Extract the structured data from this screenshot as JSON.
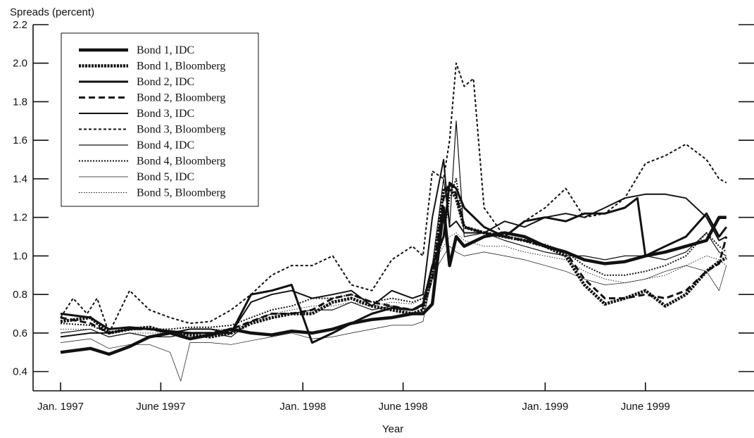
{
  "chart_data": {
    "type": "line",
    "title": "",
    "ylabel": "Spreads (percent)",
    "xlabel": "Year",
    "ylim": [
      0.3,
      2.2
    ],
    "yticks": [
      0.4,
      0.6,
      0.8,
      1.0,
      1.2,
      1.4,
      1.6,
      1.8,
      2.0,
      2.2
    ],
    "ytick_labels": [
      "0.4",
      "0.6",
      "0.8",
      "1.0",
      "1.2",
      "1.4",
      "1.6",
      "1.8",
      "2.0",
      "2.2"
    ],
    "xlim": [
      "1997-01-01",
      "1999-10-15"
    ],
    "xticks": [
      "1997-01-01",
      "1997-06-01",
      "1998-01-01",
      "1998-06-01",
      "1999-01-01",
      "1999-06-01"
    ],
    "xtick_labels": [
      "Jan. 1997",
      "June 1997",
      "Jan. 1998",
      "June 1998",
      "Jan. 1999",
      "June 1999"
    ],
    "grid": false,
    "legend_position": "top-left",
    "series": [
      {
        "name": "Bond 1, IDC",
        "x": [
          "1997-01-01",
          "1997-02-15",
          "1997-03-15",
          "1997-04-15",
          "1997-05-15",
          "1997-06-15",
          "1997-07-15",
          "1997-08-15",
          "1997-09-15",
          "1997-10-15",
          "1997-11-15",
          "1997-12-15",
          "1998-01-15",
          "1998-02-15",
          "1998-03-15",
          "1998-04-15",
          "1998-05-15",
          "1998-06-15",
          "1998-07-01",
          "1998-07-15",
          "1998-08-01",
          "1998-08-10",
          "1998-08-20",
          "1998-09-01",
          "1998-10-01",
          "1998-11-01",
          "1998-12-01",
          "1999-01-01",
          "1999-02-01",
          "1999-03-01",
          "1999-04-01",
          "1999-05-01",
          "1999-06-01",
          "1999-07-01",
          "1999-08-01",
          "1999-09-01",
          "1999-09-20",
          "1999-10-01"
        ],
        "values": [
          0.5,
          0.52,
          0.49,
          0.53,
          0.58,
          0.6,
          0.57,
          0.59,
          0.62,
          0.6,
          0.59,
          0.61,
          0.6,
          0.62,
          0.65,
          0.67,
          0.68,
          0.7,
          0.7,
          0.75,
          1.25,
          0.95,
          1.1,
          1.05,
          1.1,
          1.12,
          1.1,
          1.05,
          1.02,
          0.98,
          0.96,
          0.97,
          1.0,
          1.02,
          1.05,
          1.08,
          1.2,
          1.2
        ]
      },
      {
        "name": "Bond 1, Bloomberg",
        "x": [
          "1997-01-01",
          "1997-02-15",
          "1997-03-15",
          "1997-04-15",
          "1997-05-15",
          "1997-06-15",
          "1997-07-15",
          "1997-08-15",
          "1997-09-15",
          "1997-10-15",
          "1997-11-15",
          "1997-12-15",
          "1998-01-15",
          "1998-02-15",
          "1998-03-15",
          "1998-04-15",
          "1998-05-15",
          "1998-06-15",
          "1998-07-01",
          "1998-07-15",
          "1998-08-01",
          "1998-08-10",
          "1998-08-20",
          "1998-09-01",
          "1998-10-01",
          "1998-11-01",
          "1998-12-01",
          "1999-01-01",
          "1999-02-01",
          "1999-03-01",
          "1999-04-01",
          "1999-05-01",
          "1999-06-01",
          "1999-07-01",
          "1999-08-01",
          "1999-09-01",
          "1999-09-20",
          "1999-10-01"
        ],
        "values": [
          0.66,
          0.68,
          0.6,
          0.62,
          0.63,
          0.6,
          0.59,
          0.58,
          0.6,
          0.65,
          0.68,
          0.7,
          0.7,
          0.76,
          0.78,
          0.74,
          0.72,
          0.7,
          0.72,
          0.9,
          1.35,
          1.35,
          1.3,
          1.15,
          1.12,
          1.1,
          1.08,
          1.05,
          1.0,
          0.85,
          0.75,
          0.78,
          0.82,
          0.74,
          0.8,
          0.92,
          0.97,
          0.99
        ]
      },
      {
        "name": "Bond 2, IDC",
        "x": [
          "1997-01-01",
          "1997-02-15",
          "1997-03-15",
          "1997-04-15",
          "1997-05-15",
          "1997-06-15",
          "1997-07-15",
          "1997-08-15",
          "1997-09-15",
          "1997-10-15",
          "1997-11-15",
          "1997-12-15",
          "1998-01-15",
          "1998-02-15",
          "1998-03-15",
          "1998-04-15",
          "1998-05-15",
          "1998-06-15",
          "1998-07-01",
          "1998-07-15",
          "1998-08-01",
          "1998-08-10",
          "1998-08-20",
          "1998-09-01",
          "1998-10-01",
          "1998-11-01",
          "1998-12-01",
          "1999-01-01",
          "1999-02-01",
          "1999-03-01",
          "1999-04-01",
          "1999-05-01",
          "1999-05-20",
          "1999-06-01",
          "1999-07-01",
          "1999-08-01",
          "1999-09-01",
          "1999-09-20",
          "1999-10-01"
        ],
        "values": [
          0.7,
          0.68,
          0.62,
          0.63,
          0.62,
          0.61,
          0.6,
          0.6,
          0.6,
          0.8,
          0.82,
          0.85,
          0.55,
          0.6,
          0.65,
          0.7,
          0.73,
          0.72,
          0.75,
          0.95,
          1.1,
          1.38,
          1.35,
          1.25,
          1.15,
          1.1,
          1.18,
          1.2,
          1.18,
          1.22,
          1.22,
          1.25,
          1.3,
          1.0,
          1.05,
          1.1,
          1.22,
          1.1,
          1.15
        ]
      },
      {
        "name": "Bond 2, Bloomberg",
        "x": [
          "1997-01-01",
          "1997-02-15",
          "1997-03-15",
          "1997-04-15",
          "1997-05-15",
          "1997-06-15",
          "1997-07-15",
          "1997-08-15",
          "1997-09-15",
          "1997-10-15",
          "1997-11-15",
          "1997-12-15",
          "1998-01-15",
          "1998-02-15",
          "1998-03-15",
          "1998-04-15",
          "1998-05-15",
          "1998-06-15",
          "1998-07-01",
          "1998-07-15",
          "1998-08-01",
          "1998-08-10",
          "1998-08-20",
          "1998-09-01",
          "1998-10-01",
          "1998-11-01",
          "1998-12-01",
          "1999-01-01",
          "1999-02-01",
          "1999-03-01",
          "1999-04-01",
          "1999-05-01",
          "1999-06-01",
          "1999-07-01",
          "1999-08-01",
          "1999-09-01",
          "1999-09-20",
          "1999-10-01"
        ],
        "values": [
          0.68,
          0.65,
          0.6,
          0.62,
          0.62,
          0.6,
          0.6,
          0.6,
          0.62,
          0.66,
          0.7,
          0.7,
          0.72,
          0.78,
          0.8,
          0.76,
          0.74,
          0.72,
          0.74,
          0.88,
          1.3,
          1.38,
          1.32,
          1.15,
          1.12,
          1.1,
          1.08,
          1.05,
          1.02,
          0.88,
          0.78,
          0.78,
          0.8,
          0.78,
          0.82,
          0.92,
          0.96,
          1.1
        ]
      },
      {
        "name": "Bond 3, IDC",
        "x": [
          "1997-01-01",
          "1997-02-15",
          "1997-03-15",
          "1997-04-15",
          "1997-05-15",
          "1997-06-15",
          "1997-07-15",
          "1997-08-15",
          "1997-09-15",
          "1997-10-15",
          "1997-11-15",
          "1997-12-15",
          "1998-01-15",
          "1998-02-15",
          "1998-03-15",
          "1998-04-15",
          "1998-05-15",
          "1998-06-15",
          "1998-07-01",
          "1998-07-15",
          "1998-08-01",
          "1998-08-10",
          "1998-08-20",
          "1998-09-01",
          "1998-10-01",
          "1998-11-01",
          "1998-12-01",
          "1999-01-01",
          "1999-02-01",
          "1999-03-01",
          "1999-04-01",
          "1999-05-01",
          "1999-06-01",
          "1999-07-01",
          "1999-08-01",
          "1999-09-01",
          "1999-09-20",
          "1999-10-01"
        ],
        "values": [
          0.58,
          0.6,
          0.6,
          0.62,
          0.62,
          0.6,
          0.62,
          0.62,
          0.6,
          0.76,
          0.8,
          0.82,
          0.78,
          0.8,
          0.82,
          0.74,
          0.82,
          0.78,
          0.8,
          1.2,
          1.5,
          1.15,
          1.18,
          1.12,
          1.12,
          1.18,
          1.15,
          1.2,
          1.22,
          1.2,
          1.25,
          1.3,
          1.32,
          1.32,
          1.3,
          1.2,
          1.08,
          1.1
        ]
      },
      {
        "name": "Bond 3, Bloomberg",
        "x": [
          "1997-01-01",
          "1997-01-20",
          "1997-02-10",
          "1997-02-25",
          "1997-03-15",
          "1997-04-15",
          "1997-05-15",
          "1997-06-15",
          "1997-07-15",
          "1997-08-15",
          "1997-09-15",
          "1997-10-15",
          "1997-11-15",
          "1997-12-15",
          "1998-01-15",
          "1998-02-15",
          "1998-03-15",
          "1998-04-15",
          "1998-05-15",
          "1998-06-15",
          "1998-07-01",
          "1998-07-15",
          "1998-08-01",
          "1998-08-10",
          "1998-08-20",
          "1998-09-01",
          "1998-09-15",
          "1998-10-01",
          "1998-11-01",
          "1998-12-01",
          "1999-01-01",
          "1999-02-01",
          "1999-03-01",
          "1999-04-01",
          "1999-05-01",
          "1999-06-01",
          "1999-07-01",
          "1999-08-01",
          "1999-09-01",
          "1999-09-20",
          "1999-10-01"
        ],
        "values": [
          0.68,
          0.78,
          0.7,
          0.78,
          0.6,
          0.82,
          0.72,
          0.68,
          0.65,
          0.66,
          0.72,
          0.8,
          0.9,
          0.95,
          0.95,
          1.0,
          0.85,
          0.82,
          0.98,
          1.05,
          1.0,
          1.44,
          1.4,
          1.6,
          2.0,
          1.88,
          1.92,
          1.25,
          1.1,
          1.18,
          1.25,
          1.35,
          1.2,
          1.22,
          1.3,
          1.48,
          1.52,
          1.58,
          1.5,
          1.4,
          1.38
        ]
      },
      {
        "name": "Bond 4, IDC",
        "x": [
          "1997-01-01",
          "1997-02-15",
          "1997-03-15",
          "1997-04-15",
          "1997-05-15",
          "1997-06-15",
          "1997-07-15",
          "1997-08-15",
          "1997-09-15",
          "1997-10-15",
          "1997-11-15",
          "1997-12-15",
          "1998-01-15",
          "1998-02-15",
          "1998-03-15",
          "1998-04-15",
          "1998-05-15",
          "1998-06-15",
          "1998-07-01",
          "1998-07-15",
          "1998-08-01",
          "1998-08-10",
          "1998-08-20",
          "1998-09-01",
          "1998-10-01",
          "1998-11-01",
          "1998-12-01",
          "1999-01-01",
          "1999-02-01",
          "1999-03-01",
          "1999-04-01",
          "1999-05-01",
          "1999-06-01",
          "1999-07-01",
          "1999-08-01",
          "1999-09-01",
          "1999-09-20",
          "1999-10-01"
        ],
        "values": [
          0.6,
          0.62,
          0.58,
          0.6,
          0.58,
          0.58,
          0.6,
          0.6,
          0.58,
          0.66,
          0.7,
          0.7,
          0.72,
          0.72,
          0.76,
          0.72,
          0.74,
          0.72,
          0.74,
          0.95,
          1.4,
          1.15,
          1.7,
          1.1,
          1.12,
          1.08,
          1.05,
          1.02,
          1.0,
          1.0,
          0.98,
          1.0,
          1.0,
          0.98,
          1.02,
          1.12,
          1.02,
          1.0
        ]
      },
      {
        "name": "Bond 4, Bloomberg",
        "x": [
          "1997-01-01",
          "1997-02-15",
          "1997-03-15",
          "1997-04-15",
          "1997-05-15",
          "1997-06-15",
          "1997-07-15",
          "1997-08-15",
          "1997-09-15",
          "1997-10-15",
          "1997-11-15",
          "1997-12-15",
          "1998-01-15",
          "1998-02-15",
          "1998-03-15",
          "1998-04-15",
          "1998-05-15",
          "1998-06-15",
          "1998-07-01",
          "1998-07-15",
          "1998-08-01",
          "1998-08-10",
          "1998-08-20",
          "1998-09-01",
          "1998-10-01",
          "1998-11-01",
          "1998-12-01",
          "1999-01-01",
          "1999-02-01",
          "1999-03-01",
          "1999-04-01",
          "1999-05-01",
          "1999-06-01",
          "1999-07-01",
          "1999-08-01",
          "1999-09-01",
          "1999-09-20",
          "1999-10-01"
        ],
        "values": [
          0.65,
          0.64,
          0.6,
          0.62,
          0.62,
          0.62,
          0.63,
          0.63,
          0.64,
          0.68,
          0.72,
          0.74,
          0.78,
          0.78,
          0.8,
          0.76,
          0.78,
          0.76,
          0.78,
          0.9,
          1.1,
          1.3,
          1.4,
          1.15,
          1.12,
          1.1,
          1.08,
          1.06,
          1.02,
          0.95,
          0.9,
          0.9,
          0.92,
          0.95,
          1.0,
          1.12,
          1.05,
          1.02
        ]
      },
      {
        "name": "Bond 5, IDC",
        "x": [
          "1997-01-01",
          "1997-02-15",
          "1997-03-15",
          "1997-04-15",
          "1997-05-15",
          "1997-06-15",
          "1997-07-01",
          "1997-07-15",
          "1997-08-15",
          "1997-09-15",
          "1997-10-15",
          "1997-11-15",
          "1997-12-15",
          "1998-01-15",
          "1998-02-15",
          "1998-03-15",
          "1998-04-15",
          "1998-05-15",
          "1998-06-15",
          "1998-07-01",
          "1998-07-15",
          "1998-08-01",
          "1998-08-10",
          "1998-08-20",
          "1998-09-01",
          "1998-10-01",
          "1998-11-01",
          "1998-12-01",
          "1999-01-01",
          "1999-02-01",
          "1999-03-01",
          "1999-04-01",
          "1999-05-01",
          "1999-06-01",
          "1999-07-01",
          "1999-08-01",
          "1999-09-01",
          "1999-09-20",
          "1999-10-01"
        ],
        "values": [
          0.55,
          0.57,
          0.52,
          0.54,
          0.54,
          0.5,
          0.35,
          0.55,
          0.55,
          0.54,
          0.56,
          0.58,
          0.6,
          0.57,
          0.58,
          0.6,
          0.62,
          0.64,
          0.64,
          0.66,
          0.9,
          1.0,
          1.05,
          1.02,
          1.0,
          1.02,
          1.0,
          0.98,
          0.95,
          0.92,
          0.88,
          0.85,
          0.86,
          0.88,
          0.92,
          0.95,
          0.92,
          0.82,
          0.95
        ]
      },
      {
        "name": "Bond 5, Bloomberg",
        "x": [
          "1997-01-01",
          "1997-02-15",
          "1997-03-15",
          "1997-04-15",
          "1997-05-15",
          "1997-06-15",
          "1997-07-15",
          "1997-08-15",
          "1997-09-15",
          "1997-10-15",
          "1997-11-15",
          "1997-12-15",
          "1998-01-15",
          "1998-02-15",
          "1998-03-15",
          "1998-04-15",
          "1998-05-15",
          "1998-06-15",
          "1998-07-01",
          "1998-07-15",
          "1998-08-01",
          "1998-08-10",
          "1998-08-20",
          "1998-09-01",
          "1998-10-01",
          "1998-11-01",
          "1998-12-01",
          "1999-01-01",
          "1999-02-01",
          "1999-03-01",
          "1999-04-01",
          "1999-05-01",
          "1999-06-01",
          "1999-07-01",
          "1999-08-01",
          "1999-09-01",
          "1999-09-20",
          "1999-10-01"
        ],
        "values": [
          0.62,
          0.62,
          0.58,
          0.6,
          0.6,
          0.6,
          0.62,
          0.62,
          0.62,
          0.66,
          0.7,
          0.72,
          0.74,
          0.74,
          0.76,
          0.74,
          0.76,
          0.75,
          0.78,
          0.95,
          1.05,
          1.1,
          1.12,
          1.08,
          1.05,
          1.05,
          1.02,
          1.0,
          0.98,
          0.92,
          0.88,
          0.86,
          0.88,
          0.9,
          0.95,
          1.0,
          0.98,
          0.95
        ]
      }
    ]
  },
  "styles": {
    "line_color": "#111111",
    "series_styles": [
      {
        "width": 4.5,
        "dash": ""
      },
      {
        "width": 4.5,
        "dash": "3,1.5"
      },
      {
        "width": 3.0,
        "dash": ""
      },
      {
        "width": 3.0,
        "dash": "9,5"
      },
      {
        "width": 2.0,
        "dash": ""
      },
      {
        "width": 2.0,
        "dash": "4,3"
      },
      {
        "width": 1.2,
        "dash": ""
      },
      {
        "width": 2.0,
        "dash": "2,2"
      },
      {
        "width": 0.7,
        "dash": ""
      },
      {
        "width": 0.9,
        "dash": "1.5,2"
      }
    ]
  }
}
